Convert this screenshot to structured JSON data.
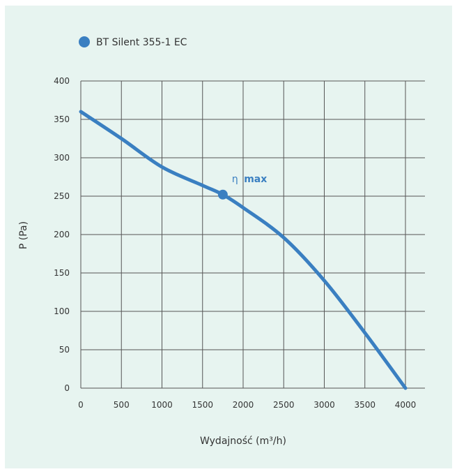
{
  "chart_data": {
    "type": "line",
    "legend": {
      "label": "BT Silent 355-1 EC",
      "position": "top-left"
    },
    "xlabel": "Wydajność (m³/h)",
    "ylabel": "P (Pa)",
    "xlim": [
      0,
      4000
    ],
    "ylim": [
      0,
      400
    ],
    "xticks": [
      "0",
      "500",
      "1000",
      "1500",
      "2000",
      "2500",
      "3000",
      "3500",
      "4000"
    ],
    "yticks": [
      "0",
      "50",
      "100",
      "150",
      "200",
      "250",
      "300",
      "350",
      "400"
    ],
    "grid": true,
    "series": [
      {
        "name": "BT Silent 355-1 EC",
        "color": "#3a7fc1",
        "points": [
          [
            0,
            360
          ],
          [
            500,
            325
          ],
          [
            1000,
            288
          ],
          [
            1500,
            264
          ],
          [
            1750,
            252
          ],
          [
            2000,
            235
          ],
          [
            2500,
            196
          ],
          [
            3000,
            140
          ],
          [
            3500,
            72
          ],
          [
            4000,
            0
          ]
        ]
      }
    ],
    "annotation": {
      "eta": "η",
      "text": "max",
      "x": 1750,
      "y": 252
    }
  },
  "colors": {
    "accent": "#3a7fc1",
    "grid": "#555555",
    "background": "#e7f4f0"
  }
}
